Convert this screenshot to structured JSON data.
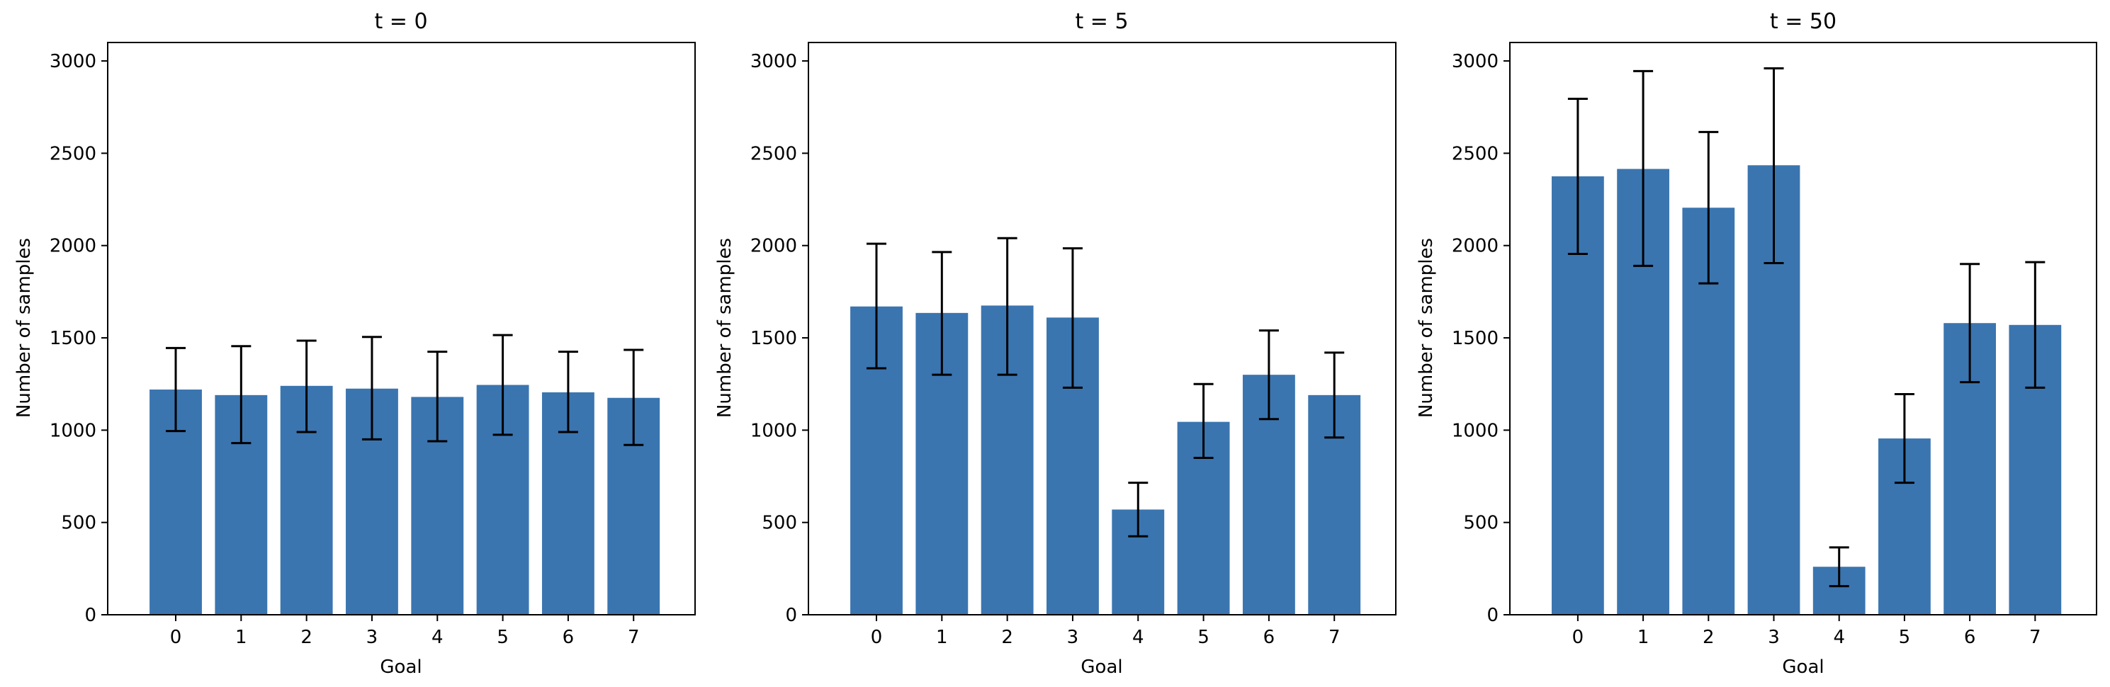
{
  "colors": {
    "bar": "#3a75b0",
    "error_bar": "#000000",
    "axis": "#000000",
    "background": "#ffffff"
  },
  "chart_data": [
    {
      "type": "bar",
      "title": "t = 0",
      "xlabel": "Goal",
      "ylabel": "Number of samples",
      "categories": [
        "0",
        "1",
        "2",
        "3",
        "4",
        "5",
        "6",
        "7"
      ],
      "values": [
        1220,
        1190,
        1240,
        1225,
        1180,
        1245,
        1205,
        1175
      ],
      "error_low": [
        995,
        930,
        990,
        950,
        940,
        975,
        990,
        920
      ],
      "error_high": [
        1445,
        1455,
        1485,
        1505,
        1425,
        1515,
        1425,
        1435
      ],
      "ylim": [
        0,
        3100
      ],
      "yticks": [
        "0",
        "500",
        "1000",
        "1500",
        "2000",
        "2500",
        "3000"
      ],
      "grid": false,
      "legend": "none"
    },
    {
      "type": "bar",
      "title": "t = 5",
      "xlabel": "Goal",
      "ylabel": "Number of samples",
      "categories": [
        "0",
        "1",
        "2",
        "3",
        "4",
        "5",
        "6",
        "7"
      ],
      "values": [
        1670,
        1635,
        1675,
        1610,
        570,
        1045,
        1300,
        1190
      ],
      "error_low": [
        1335,
        1300,
        1300,
        1230,
        425,
        850,
        1060,
        960
      ],
      "error_high": [
        2010,
        1965,
        2040,
        1985,
        715,
        1250,
        1540,
        1420
      ],
      "ylim": [
        0,
        3100
      ],
      "yticks": [
        "0",
        "500",
        "1000",
        "1500",
        "2000",
        "2500",
        "3000"
      ],
      "grid": false,
      "legend": "none"
    },
    {
      "type": "bar",
      "title": "t = 50",
      "xlabel": "Goal",
      "ylabel": "Number of samples",
      "categories": [
        "0",
        "1",
        "2",
        "3",
        "4",
        "5",
        "6",
        "7"
      ],
      "values": [
        2375,
        2415,
        2205,
        2435,
        260,
        955,
        1580,
        1570
      ],
      "error_low": [
        1955,
        1890,
        1795,
        1905,
        155,
        715,
        1260,
        1230
      ],
      "error_high": [
        2795,
        2945,
        2615,
        2960,
        365,
        1195,
        1900,
        1910
      ],
      "ylim": [
        0,
        3100
      ],
      "yticks": [
        "0",
        "500",
        "1000",
        "1500",
        "2000",
        "2500",
        "3000"
      ],
      "grid": false,
      "legend": "none"
    }
  ]
}
